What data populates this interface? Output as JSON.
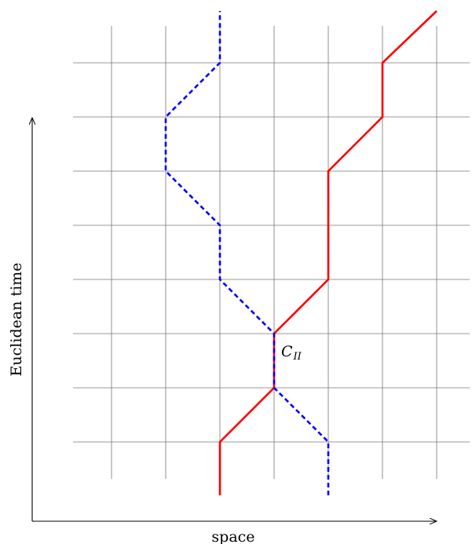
{
  "axes": {
    "x_label": "space",
    "y_label": "Euclidean time"
  },
  "marker": {
    "main": "C",
    "sub": "II"
  },
  "colors": {
    "grid": "#777777",
    "axis": "#000000",
    "worldline_solid": "#ff0000",
    "worldline_dashed": "#0000ff"
  },
  "lattice": {
    "columns": 7,
    "rows": 8
  },
  "worldlines": [
    {
      "style": "solid",
      "color": "#ff0000",
      "path": [
        [
          2,
          -1
        ],
        [
          2,
          0
        ],
        [
          3,
          1
        ],
        [
          3,
          2
        ],
        [
          4,
          3
        ],
        [
          4,
          4
        ],
        [
          4,
          5
        ],
        [
          5,
          6
        ],
        [
          5,
          7
        ],
        [
          6,
          8
        ]
      ]
    },
    {
      "style": "dashed",
      "color": "#0000ff",
      "path": [
        [
          4,
          -1
        ],
        [
          4,
          0
        ],
        [
          3,
          1
        ],
        [
          3,
          2
        ],
        [
          2,
          3
        ],
        [
          2,
          4
        ],
        [
          1,
          5
        ],
        [
          1,
          6
        ],
        [
          2,
          7
        ],
        [
          2,
          8
        ]
      ]
    }
  ]
}
